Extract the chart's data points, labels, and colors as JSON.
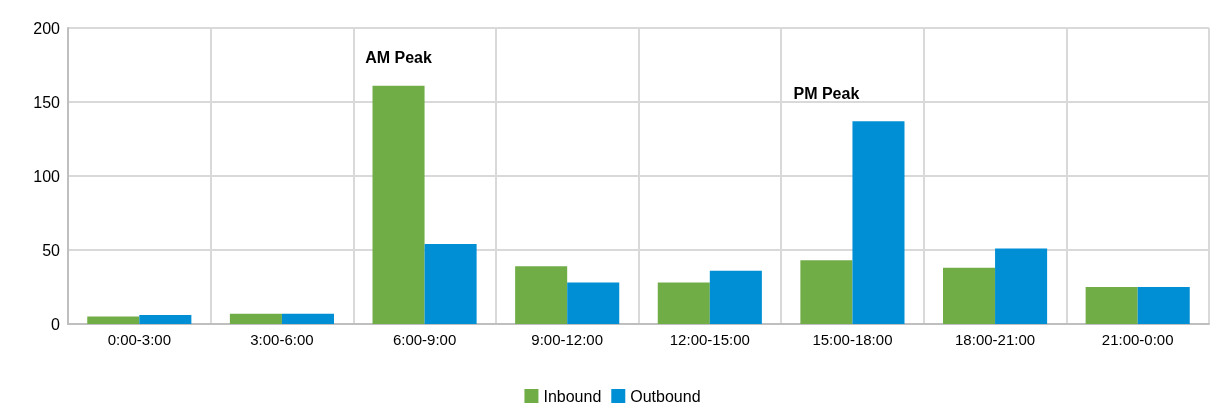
{
  "chart_data": {
    "type": "bar",
    "categories": [
      "0:00-3:00",
      "3:00-6:00",
      "6:00-9:00",
      "9:00-12:00",
      "12:00-15:00",
      "15:00-18:00",
      "18:00-21:00",
      "21:00-0:00"
    ],
    "series": [
      {
        "name": "Inbound",
        "color": "#70ad47",
        "values": [
          5,
          7,
          161,
          39,
          28,
          43,
          38,
          25
        ]
      },
      {
        "name": "Outbound",
        "color": "#008fd5",
        "values": [
          6,
          7,
          54,
          28,
          36,
          137,
          51,
          25
        ]
      }
    ],
    "ylim": [
      0,
      200
    ],
    "yticks": [
      0,
      50,
      100,
      150,
      200
    ],
    "grid": true,
    "legend": "bottom",
    "annotations": [
      "AM Peak",
      "PM Peak"
    ]
  }
}
